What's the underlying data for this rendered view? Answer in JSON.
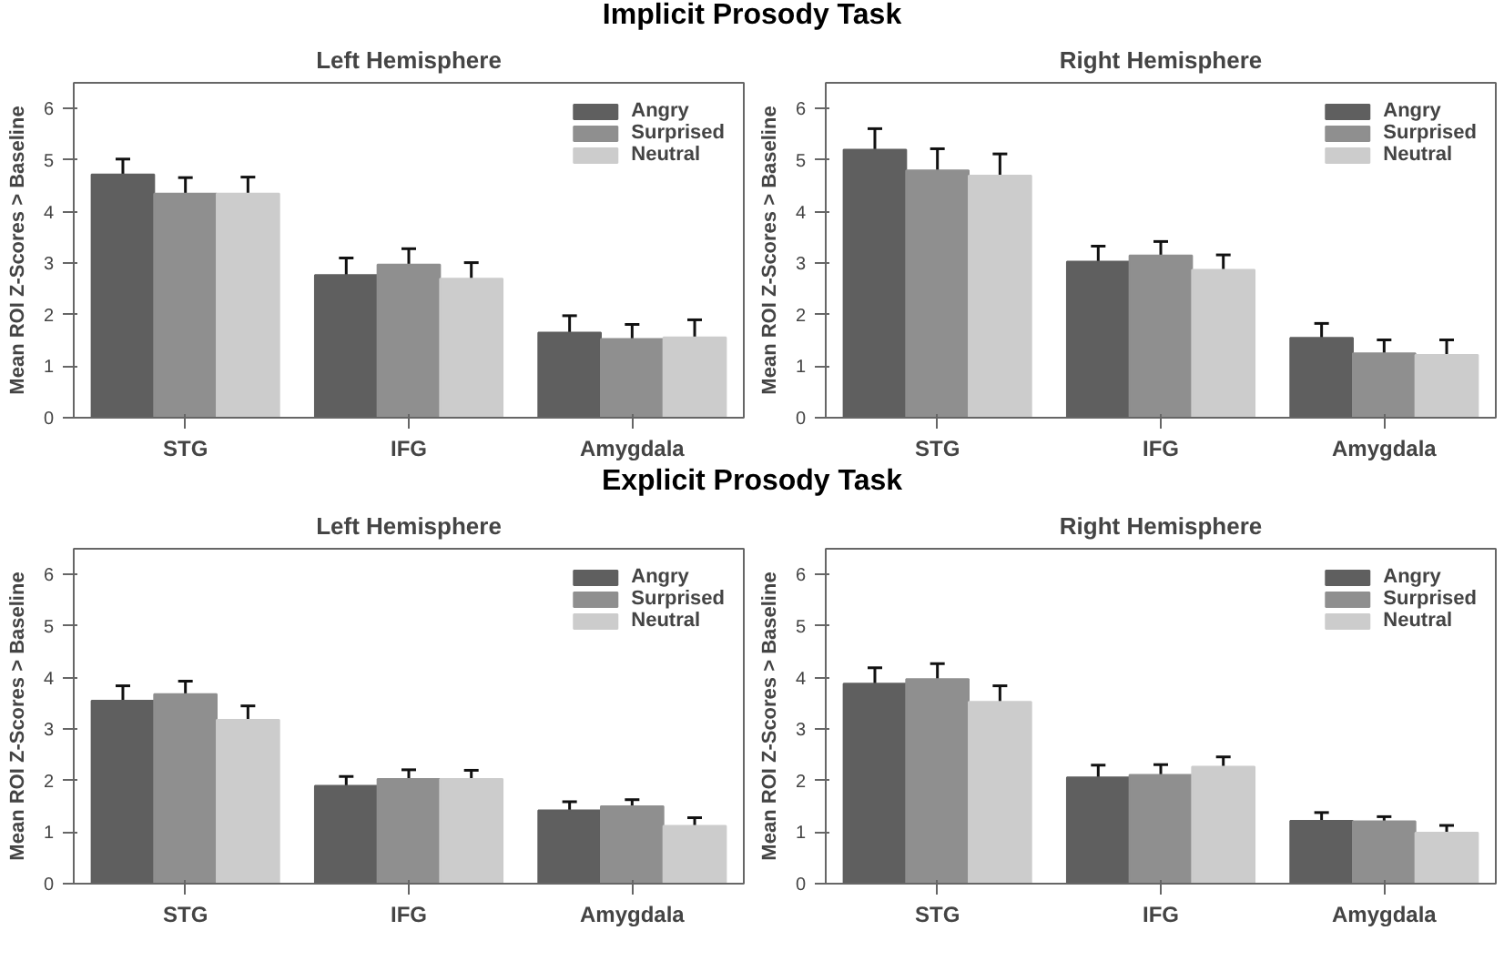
{
  "chart_data": [
    {
      "type": "bar",
      "title": "Left Hemisphere",
      "annotations": [
        "Implicit Prosody Task"
      ],
      "ylabel": "Mean ROI Z-Scores > Baseline",
      "categories": [
        "STG",
        "IFG",
        "Amygdala"
      ],
      "ylim": [
        0,
        6.5
      ],
      "yticks": [
        0,
        1,
        2,
        3,
        4,
        5,
        6
      ],
      "grid": false,
      "legend": "top right",
      "series": [
        {
          "name": "Angry",
          "color": "#5f5f5f",
          "values": [
            4.72,
            2.77,
            1.65
          ],
          "errors": [
            0.3,
            0.33,
            0.33
          ]
        },
        {
          "name": "Surprised",
          "color": "#8f8f8f",
          "values": [
            4.35,
            2.97,
            1.53
          ],
          "errors": [
            0.31,
            0.31,
            0.28
          ]
        },
        {
          "name": "Neutral",
          "color": "#cccccc",
          "values": [
            4.35,
            2.7,
            1.56
          ],
          "errors": [
            0.32,
            0.31,
            0.34
          ]
        }
      ]
    },
    {
      "type": "bar",
      "title": "Right Hemisphere",
      "ylabel": "Mean ROI Z-Scores > Baseline",
      "categories": [
        "STG",
        "IFG",
        "Amygdala"
      ],
      "ylim": [
        0,
        6.5
      ],
      "yticks": [
        0,
        1,
        2,
        3,
        4,
        5,
        6
      ],
      "grid": false,
      "legend": "top right",
      "series": [
        {
          "name": "Angry",
          "color": "#5f5f5f",
          "values": [
            5.2,
            3.03,
            1.55
          ],
          "errors": [
            0.41,
            0.3,
            0.28
          ]
        },
        {
          "name": "Surprised",
          "color": "#8f8f8f",
          "values": [
            4.8,
            3.15,
            1.25
          ],
          "errors": [
            0.42,
            0.27,
            0.26
          ]
        },
        {
          "name": "Neutral",
          "color": "#cccccc",
          "values": [
            4.7,
            2.87,
            1.22
          ],
          "errors": [
            0.42,
            0.29,
            0.29
          ]
        }
      ]
    },
    {
      "type": "bar",
      "title": "Left Hemisphere",
      "annotations": [
        "Explicit Prosody Task"
      ],
      "ylabel": "Mean ROI Z-Scores > Baseline",
      "categories": [
        "STG",
        "IFG",
        "Amygdala"
      ],
      "ylim": [
        0,
        6.5
      ],
      "yticks": [
        0,
        1,
        2,
        3,
        4,
        5,
        6
      ],
      "grid": false,
      "legend": "top right",
      "series": [
        {
          "name": "Angry",
          "color": "#5f5f5f",
          "values": [
            3.55,
            1.9,
            1.42
          ],
          "errors": [
            0.29,
            0.18,
            0.17
          ]
        },
        {
          "name": "Surprised",
          "color": "#8f8f8f",
          "values": [
            3.68,
            2.03,
            1.5
          ],
          "errors": [
            0.25,
            0.18,
            0.13
          ]
        },
        {
          "name": "Neutral",
          "color": "#cccccc",
          "values": [
            3.18,
            2.03,
            1.12
          ],
          "errors": [
            0.27,
            0.17,
            0.16
          ]
        }
      ]
    },
    {
      "type": "bar",
      "title": "Right Hemisphere",
      "ylabel": "Mean ROI Z-Scores > Baseline",
      "categories": [
        "STG",
        "IFG",
        "Amygdala"
      ],
      "ylim": [
        0,
        6.5
      ],
      "yticks": [
        0,
        1,
        2,
        3,
        4,
        5,
        6
      ],
      "grid": false,
      "legend": "top right",
      "series": [
        {
          "name": "Angry",
          "color": "#5f5f5f",
          "values": [
            3.88,
            2.06,
            1.22
          ],
          "errors": [
            0.31,
            0.24,
            0.16
          ]
        },
        {
          "name": "Surprised",
          "color": "#8f8f8f",
          "values": [
            3.97,
            2.11,
            1.21
          ],
          "errors": [
            0.3,
            0.2,
            0.09
          ]
        },
        {
          "name": "Neutral",
          "color": "#cccccc",
          "values": [
            3.53,
            2.27,
            0.99
          ],
          "errors": [
            0.31,
            0.19,
            0.14
          ]
        }
      ]
    }
  ]
}
